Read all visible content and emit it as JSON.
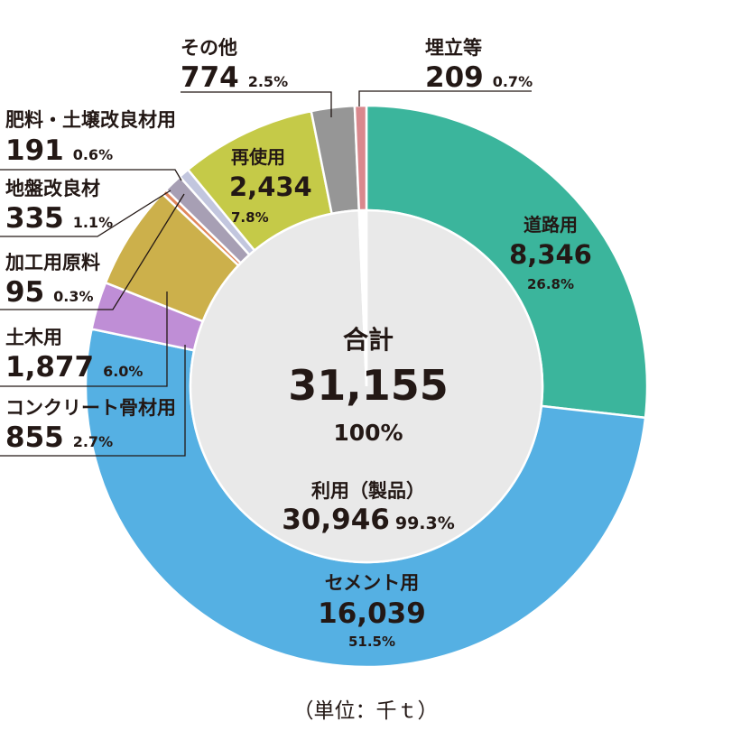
{
  "chart_data": {
    "type": "donut",
    "unit_note": "（単位：千ｔ）",
    "total": {
      "label": "合計",
      "value": "31,155",
      "percent": "100%"
    },
    "inner": [
      {
        "label": "利用（製品）",
        "value": "30,946",
        "percent": "99.3%",
        "number": 30946,
        "color": "#e9e9e9"
      },
      {
        "label": "埋立等",
        "value": "209",
        "percent": "0.7%",
        "number": 209,
        "color": "#ffffff"
      }
    ],
    "slices": [
      {
        "label": "道路用",
        "value": "8,346",
        "percent": "26.8%",
        "number": 8346,
        "color": "#3bb59c"
      },
      {
        "label": "セメント用",
        "value": "16,039",
        "percent": "51.5%",
        "number": 16039,
        "color": "#55b0e3"
      },
      {
        "label": "コンクリート骨材用",
        "value": "855",
        "percent": "2.7%",
        "number": 855,
        "color": "#bf8ed6"
      },
      {
        "label": "土木用",
        "value": "1,877",
        "percent": "6.0%",
        "number": 1877,
        "color": "#ccb04b"
      },
      {
        "label": "加工用原料",
        "value": "95",
        "percent": "0.3%",
        "number": 95,
        "color": "#e0875c"
      },
      {
        "label": "地盤改良材",
        "value": "335",
        "percent": "1.1%",
        "number": 335,
        "color": "#a79fb4"
      },
      {
        "label": "肥料・土壌改良材用",
        "value": "191",
        "percent": "0.6%",
        "number": 191,
        "color": "#c2c6de"
      },
      {
        "label": "再使用",
        "value": "2,434",
        "percent": "7.8%",
        "number": 2434,
        "color": "#c5ca48"
      },
      {
        "label": "その他",
        "value": "774",
        "percent": "2.5%",
        "number": 774,
        "color": "#969696"
      },
      {
        "label": "埋立等",
        "value": "209",
        "percent": "0.7%",
        "number": 209,
        "color": "#d9888d"
      }
    ]
  }
}
